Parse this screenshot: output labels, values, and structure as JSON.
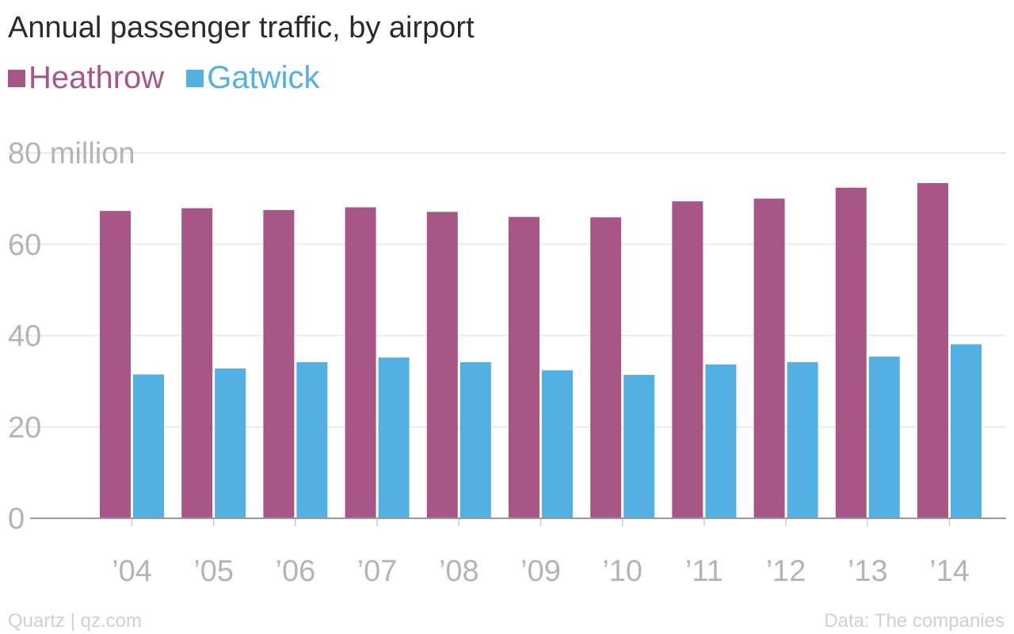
{
  "chart_data": {
    "type": "bar",
    "title": "Annual passenger traffic, by airport",
    "categories": [
      "’04",
      "’05",
      "’06",
      "’07",
      "’08",
      "’09",
      "’10",
      "’11",
      "’12",
      "’13",
      "’14"
    ],
    "series": [
      {
        "name": "Heathrow",
        "color": "#a85686",
        "values": [
          67.3,
          67.9,
          67.5,
          68.1,
          67.1,
          66.0,
          65.9,
          69.4,
          70.0,
          72.4,
          73.4
        ]
      },
      {
        "name": "Gatwick",
        "color": "#53b0e2",
        "values": [
          31.5,
          32.8,
          34.2,
          35.2,
          34.2,
          32.4,
          31.4,
          33.7,
          34.2,
          35.4,
          38.1
        ]
      }
    ],
    "ylim": [
      0,
      80
    ],
    "yticks": [
      0,
      20,
      40,
      60,
      80
    ],
    "ytick_labels": [
      "0",
      "20",
      "40",
      "60",
      "80 million"
    ],
    "xlabel": "",
    "ylabel": "",
    "grid": true,
    "legend_position": "top-left"
  },
  "footer": {
    "source_left": "Quartz | qz.com",
    "source_right": "Data: The companies"
  }
}
